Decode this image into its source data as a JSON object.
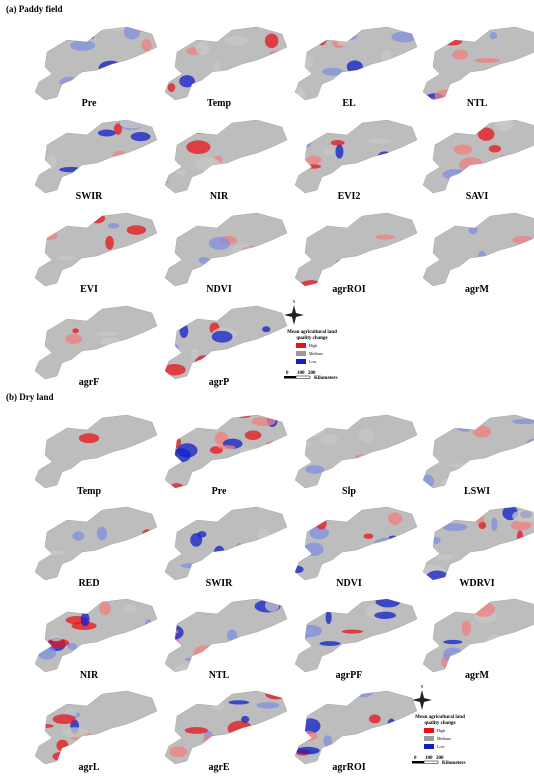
{
  "sections": [
    {
      "title": "(a)  Paddy field",
      "maps": [
        {
          "label": "Pre"
        },
        {
          "label": "Temp"
        },
        {
          "label": "EL"
        },
        {
          "label": "NTL"
        },
        {
          "label": "SWIR"
        },
        {
          "label": "NIR"
        },
        {
          "label": "EVI2"
        },
        {
          "label": "SAVI"
        },
        {
          "label": "EVI"
        },
        {
          "label": "NDVI"
        },
        {
          "label": "agrROI"
        },
        {
          "label": "agrM"
        },
        {
          "label": "agrF"
        },
        {
          "label": "agrP"
        }
      ],
      "legend": {
        "north": "N",
        "title_lines": [
          "Mean agricultural land",
          "quality change"
        ],
        "items": [
          {
            "label": "High",
            "color": "#e8141c"
          },
          {
            "label": "Medium",
            "color": "#9a9a9a"
          },
          {
            "label": "Low",
            "color": "#1020c8"
          }
        ],
        "scale": [
          0,
          100,
          200
        ],
        "unit": "Kilometers"
      }
    },
    {
      "title": "(b)  Dry land",
      "maps": [
        {
          "label": "Temp"
        },
        {
          "label": "Pre"
        },
        {
          "label": "Slp"
        },
        {
          "label": "LSWI"
        },
        {
          "label": "RED"
        },
        {
          "label": "SWIR"
        },
        {
          "label": "NDVI"
        },
        {
          "label": "WDRVI"
        },
        {
          "label": "NIR"
        },
        {
          "label": "NTL"
        },
        {
          "label": "agrPF"
        },
        {
          "label": "agrM"
        },
        {
          "label": "agrL"
        },
        {
          "label": "agrE"
        },
        {
          "label": "agrROI"
        }
      ],
      "legend": {
        "north": "N",
        "title_lines": [
          "Mean agricultural land",
          "quality change"
        ],
        "items": [
          {
            "label": "High",
            "color": "#e8141c"
          },
          {
            "label": "Medium",
            "color": "#9a9a9a"
          },
          {
            "label": "Low",
            "color": "#1020c8"
          }
        ],
        "scale": [
          0,
          100,
          200
        ],
        "unit": "Kilometers"
      }
    }
  ]
}
